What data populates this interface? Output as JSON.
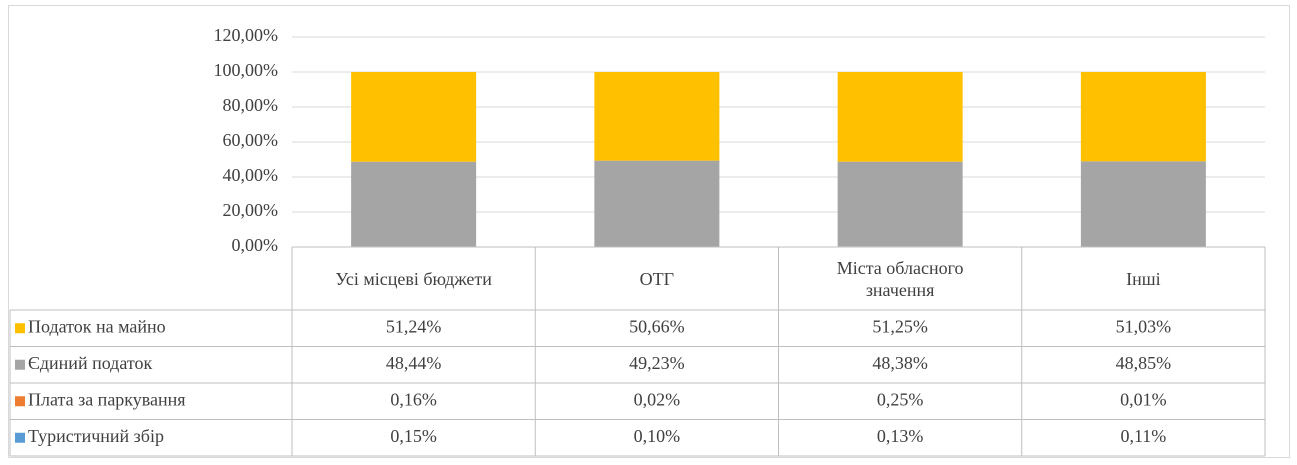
{
  "chart_data": {
    "type": "stacked_bar",
    "categories": [
      "Усі місцеві бюджети",
      "ОТГ",
      "Міста обласного значення",
      "Інші"
    ],
    "series": [
      {
        "name": "Податок на майно",
        "color": "#FFC000",
        "values": [
          51.24,
          50.66,
          51.25,
          51.03
        ],
        "value_labels": [
          "51,24%",
          "50,66%",
          "51,25%",
          "51,03%"
        ]
      },
      {
        "name": "Єдиний податок",
        "color": "#A5A5A5",
        "values": [
          48.44,
          49.23,
          48.38,
          48.85
        ],
        "value_labels": [
          "48,44%",
          "49,23%",
          "48,38%",
          "48,85%"
        ]
      },
      {
        "name": "Плата за паркування",
        "color": "#ED7D31",
        "values": [
          0.16,
          0.02,
          0.25,
          0.01
        ],
        "value_labels": [
          "0,16%",
          "0,02%",
          "0,25%",
          "0,01%"
        ]
      },
      {
        "name": "Туристичний збір",
        "color": "#5B9BD5",
        "values": [
          0.15,
          0.1,
          0.13,
          0.11
        ],
        "value_labels": [
          "0,15%",
          "0,10%",
          "0,13%",
          "0,11%"
        ]
      }
    ],
    "ylim": [
      0,
      120
    ],
    "yticks": [
      {
        "value": 0,
        "label": "0,00%"
      },
      {
        "value": 20,
        "label": "20,00%"
      },
      {
        "value": 40,
        "label": "40,00%"
      },
      {
        "value": 60,
        "label": "60,00%"
      },
      {
        "value": 80,
        "label": "80,00%"
      },
      {
        "value": 100,
        "label": "100,00%"
      },
      {
        "value": 120,
        "label": "120,00%"
      }
    ],
    "grid": true
  }
}
